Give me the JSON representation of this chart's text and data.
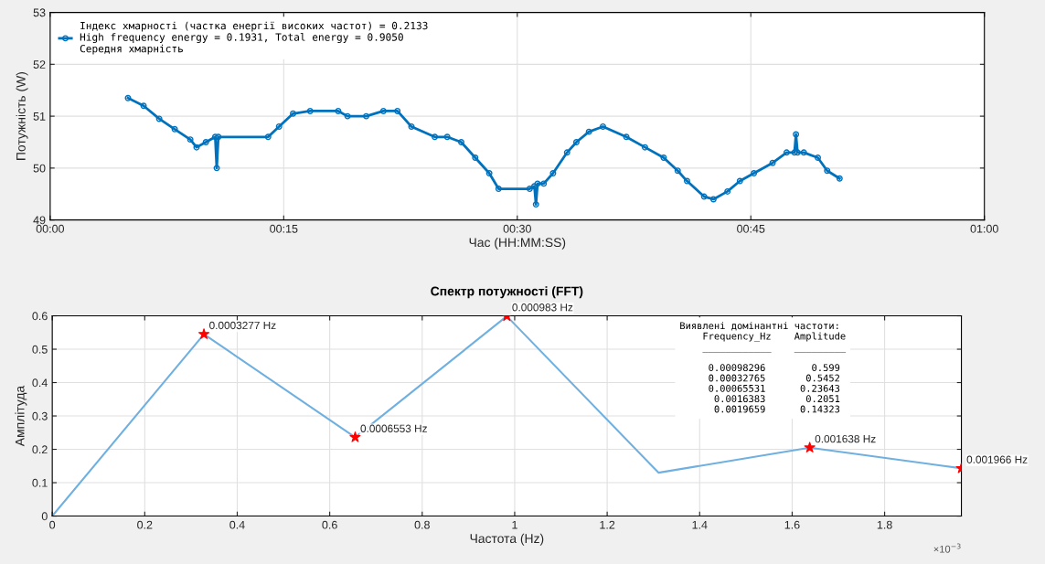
{
  "chart_data": [
    {
      "type": "line",
      "xlabel": "Час (HH:MM:SS)",
      "ylabel": "Потужність (W)",
      "x": [
        0.0833,
        0.1,
        0.1167,
        0.1333,
        0.15,
        0.1567,
        0.1667,
        0.1767,
        0.1783,
        0.18,
        0.2333,
        0.245,
        0.26,
        0.2783,
        0.3083,
        0.3183,
        0.3383,
        0.3567,
        0.3717,
        0.3867,
        0.4117,
        0.425,
        0.44,
        0.455,
        0.47,
        0.48,
        0.5133,
        0.5183,
        0.52,
        0.5217,
        0.5283,
        0.5383,
        0.5533,
        0.5633,
        0.5767,
        0.5917,
        0.6167,
        0.6367,
        0.6567,
        0.6717,
        0.6817,
        0.7,
        0.71,
        0.725,
        0.7383,
        0.7533,
        0.7733,
        0.7883,
        0.7967,
        0.7983,
        0.8,
        0.8067,
        0.8217,
        0.8317,
        0.845
      ],
      "series": [
        {
          "name": "Індекс хмарності (частка енергії високих частот) = 0.2133\nHigh frequency energy = 0.1931, Total energy = 0.9050\nСередня хмарність",
          "color": "#0072bd",
          "values": [
            51.35,
            51.2,
            50.95,
            50.75,
            50.55,
            50.4,
            50.5,
            50.6,
            50.0,
            50.6,
            50.6,
            50.8,
            51.05,
            51.1,
            51.1,
            51.0,
            51.0,
            51.1,
            51.1,
            50.8,
            50.6,
            50.6,
            50.5,
            50.2,
            49.9,
            49.6,
            49.6,
            49.65,
            49.3,
            49.7,
            49.7,
            49.9,
            50.3,
            50.5,
            50.7,
            50.8,
            50.6,
            50.4,
            50.2,
            49.95,
            49.75,
            49.45,
            49.4,
            49.55,
            49.75,
            49.9,
            50.1,
            50.3,
            50.3,
            50.65,
            50.3,
            50.3,
            50.2,
            49.95,
            49.8
          ]
        }
      ],
      "xlim": [
        0,
        1
      ],
      "xticks": [
        {
          "value": 0,
          "label": "00:00"
        },
        {
          "value": 0.25,
          "label": "00:15"
        },
        {
          "value": 0.5,
          "label": "00:30"
        },
        {
          "value": 0.75,
          "label": "00:45"
        },
        {
          "value": 1,
          "label": "01:00"
        }
      ],
      "ylim": [
        49,
        53
      ],
      "yticks": [
        49,
        50,
        51,
        52,
        53
      ],
      "grid": true,
      "legend": "top left",
      "marker": "circle",
      "line_style": "solid"
    },
    {
      "type": "line",
      "title": "Спектр потужності (FFT)",
      "xlabel": "Частота (Hz)",
      "ylabel": "Амплітуда",
      "series": [
        {
          "color": "#6fb0e0",
          "x": [
            0,
            0.328,
            0.655,
            0.983,
            1.311,
            1.638,
            1.966
          ],
          "values": [
            0,
            0.545,
            0.236,
            0.599,
            0.13,
            0.205,
            0.143
          ]
        },
        {
          "type": "scatter",
          "marker": "star",
          "color": "#ff0000",
          "x": [
            0.328,
            0.655,
            0.983,
            1.638,
            1.966
          ],
          "values": [
            0.545,
            0.236,
            0.599,
            0.205,
            0.143
          ]
        }
      ],
      "xlim": [
        0,
        1.966
      ],
      "xticks": [
        0,
        0.2,
        0.4,
        0.6,
        0.8,
        1,
        1.2,
        1.4,
        1.6,
        1.8
      ],
      "ylim": [
        0,
        0.6
      ],
      "yticks": [
        0,
        0.1,
        0.2,
        0.3,
        0.4,
        0.5,
        0.6
      ],
      "grid": true,
      "marker": "none",
      "line_style": "solid",
      "annotations": [
        "×10$^{−3}$",
        {
          "text": "0.0003277 Hz",
          "x": 0.328,
          "y": 0.545
        },
        {
          "text": "0.0006553 Hz",
          "x": 0.655,
          "y": 0.236
        },
        {
          "text": "0.000983 Hz",
          "x": 0.983,
          "y": 0.599
        },
        {
          "text": "0.001638 Hz",
          "x": 1.638,
          "y": 0.205
        },
        {
          "text": "0.001966 Hz",
          "x": 1.966,
          "y": 0.143
        },
        "Виявлені домінантні частоти:\n    Frequency_Hz    Amplitude\n    ____________    _________\n\n     0.00098296        0.599\n     0.00032765       0.5452\n     0.00065531      0.23643\n      0.0016383       0.2051\n      0.0019659      0.14323"
      ]
    }
  ]
}
